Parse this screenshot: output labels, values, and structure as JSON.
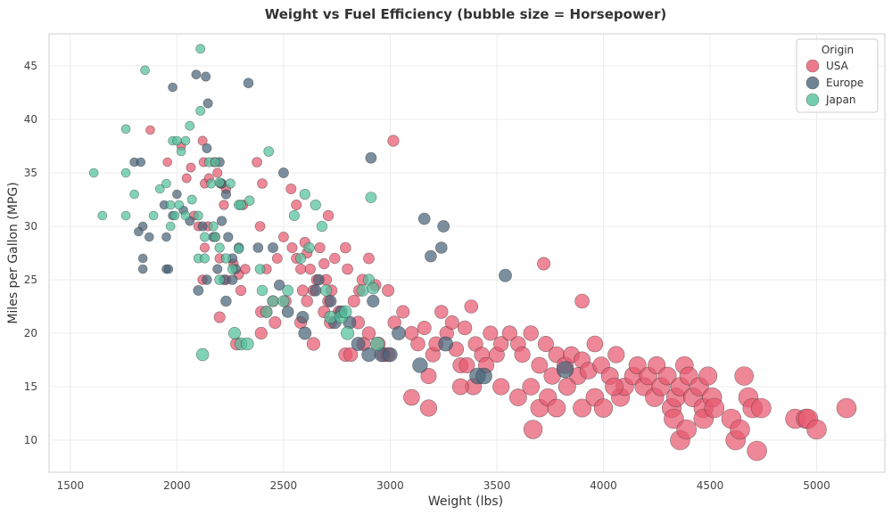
{
  "chart_data": {
    "type": "scatter",
    "title": "Weight vs Fuel Efficiency (bubble size = Horsepower)",
    "xlabel": "Weight (lbs)",
    "ylabel": "Miles per Gallon (MPG)",
    "xlim": [
      1400,
      5320
    ],
    "ylim": [
      7,
      48
    ],
    "xticks": [
      1500,
      2000,
      2500,
      3000,
      3500,
      4000,
      4500,
      5000
    ],
    "yticks": [
      10,
      15,
      20,
      25,
      30,
      35,
      40,
      45
    ],
    "grid": true,
    "legend": {
      "title": "Origin",
      "position": "top-right"
    },
    "size_encoding": "Horsepower",
    "series": [
      {
        "name": "USA",
        "color": "#e8596f",
        "points": [
          [
            1875,
            39
          ],
          [
            1955,
            36
          ],
          [
            2020,
            37.5
          ],
          [
            2045,
            34.5
          ],
          [
            2065,
            35.5
          ],
          [
            2120,
            38
          ],
          [
            2125,
            36
          ],
          [
            2130,
            34
          ],
          [
            2150,
            34.5
          ],
          [
            2175,
            36
          ],
          [
            2190,
            35
          ],
          [
            2205,
            34
          ],
          [
            2220,
            32
          ],
          [
            2230,
            33.5
          ],
          [
            2310,
            32
          ],
          [
            2375,
            36
          ],
          [
            2400,
            34
          ],
          [
            2535,
            33.5
          ],
          [
            2560,
            32
          ],
          [
            2710,
            31
          ],
          [
            3015,
            38
          ],
          [
            2080,
            31
          ],
          [
            2100,
            30
          ],
          [
            2130,
            28
          ],
          [
            2145,
            30
          ],
          [
            2180,
            29
          ],
          [
            2200,
            27
          ],
          [
            2230,
            25
          ],
          [
            2265,
            26.5
          ],
          [
            2290,
            25.5
          ],
          [
            2320,
            26
          ],
          [
            2390,
            30
          ],
          [
            2395,
            22
          ],
          [
            2420,
            26
          ],
          [
            2450,
            23
          ],
          [
            2470,
            27
          ],
          [
            2500,
            29
          ],
          [
            2540,
            28
          ],
          [
            2560,
            27
          ],
          [
            2580,
            26
          ],
          [
            2590,
            24
          ],
          [
            2600,
            28.5
          ],
          [
            2610,
            27.5
          ],
          [
            2625,
            26
          ],
          [
            2640,
            24
          ],
          [
            2655,
            25
          ],
          [
            2670,
            28
          ],
          [
            2690,
            26.5
          ],
          [
            2700,
            25
          ],
          [
            2710,
            23
          ],
          [
            2725,
            24
          ],
          [
            2740,
            27
          ],
          [
            2760,
            22
          ],
          [
            2790,
            28
          ],
          [
            2800,
            26
          ],
          [
            2830,
            23
          ],
          [
            2855,
            24
          ],
          [
            2870,
            25
          ],
          [
            2900,
            27
          ],
          [
            2930,
            24.5
          ],
          [
            2990,
            24
          ],
          [
            2120,
            25
          ],
          [
            2200,
            21.5
          ],
          [
            2280,
            19
          ],
          [
            2300,
            24
          ],
          [
            2395,
            20
          ],
          [
            2420,
            22
          ],
          [
            2460,
            21
          ],
          [
            2510,
            23
          ],
          [
            2580,
            21
          ],
          [
            2610,
            23
          ],
          [
            2640,
            19
          ],
          [
            2690,
            22
          ],
          [
            2720,
            21
          ],
          [
            2790,
            18
          ],
          [
            2815,
            18
          ],
          [
            2850,
            21
          ],
          [
            2875,
            19
          ],
          [
            2900,
            20
          ],
          [
            2945,
            19
          ],
          [
            2970,
            18
          ],
          [
            2990,
            18
          ],
          [
            3020,
            21
          ],
          [
            3060,
            22
          ],
          [
            3100,
            20
          ],
          [
            3130,
            19
          ],
          [
            3160,
            20.5
          ],
          [
            3180,
            16
          ],
          [
            3200,
            18
          ],
          [
            3215,
            19
          ],
          [
            3240,
            22
          ],
          [
            3265,
            20
          ],
          [
            3290,
            21
          ],
          [
            3310,
            18.5
          ],
          [
            3330,
            17
          ],
          [
            3350,
            20.5
          ],
          [
            3380,
            22.5
          ],
          [
            3400,
            19
          ],
          [
            3430,
            18
          ],
          [
            3450,
            17
          ],
          [
            3470,
            20
          ],
          [
            3500,
            18
          ],
          [
            3520,
            19
          ],
          [
            3560,
            20
          ],
          [
            3600,
            19
          ],
          [
            3620,
            18
          ],
          [
            3660,
            20
          ],
          [
            3700,
            17
          ],
          [
            3730,
            19
          ],
          [
            3760,
            16
          ],
          [
            3780,
            18
          ],
          [
            3820,
            17
          ],
          [
            3850,
            18
          ],
          [
            3880,
            16
          ],
          [
            3900,
            17.5
          ],
          [
            3930,
            16.5
          ],
          [
            3960,
            19
          ],
          [
            3990,
            17
          ],
          [
            4030,
            16
          ],
          [
            4060,
            18
          ],
          [
            4080,
            14
          ],
          [
            4100,
            15
          ],
          [
            4140,
            16
          ],
          [
            4160,
            17
          ],
          [
            4190,
            15
          ],
          [
            4210,
            16
          ],
          [
            4240,
            14
          ],
          [
            4250,
            17
          ],
          [
            4270,
            15
          ],
          [
            4300,
            16
          ],
          [
            4320,
            13
          ],
          [
            4340,
            14
          ],
          [
            4360,
            15
          ],
          [
            4380,
            17
          ],
          [
            4400,
            16
          ],
          [
            4420,
            14
          ],
          [
            4450,
            15
          ],
          [
            4470,
            13
          ],
          [
            4490,
            16
          ],
          [
            4510,
            14
          ],
          [
            4330,
            12
          ],
          [
            4360,
            10
          ],
          [
            4390,
            11
          ],
          [
            4470,
            12
          ],
          [
            4520,
            13
          ],
          [
            4600,
            12
          ],
          [
            4620,
            10
          ],
          [
            4640,
            11
          ],
          [
            4660,
            16
          ],
          [
            4680,
            14
          ],
          [
            4700,
            13
          ],
          [
            4720,
            9
          ],
          [
            4740,
            13
          ],
          [
            4900,
            12
          ],
          [
            4950,
            12
          ],
          [
            4960,
            12
          ],
          [
            5000,
            11
          ],
          [
            5140,
            13
          ],
          [
            3670,
            11
          ],
          [
            3100,
            14
          ],
          [
            3180,
            13
          ],
          [
            3390,
            15
          ],
          [
            3520,
            15
          ],
          [
            3600,
            14
          ],
          [
            3660,
            15
          ],
          [
            3700,
            13
          ],
          [
            3740,
            14
          ],
          [
            3780,
            13
          ],
          [
            3830,
            15
          ],
          [
            3900,
            13
          ],
          [
            3960,
            14
          ],
          [
            4000,
            13
          ],
          [
            4050,
            15
          ],
          [
            3720,
            26.5
          ],
          [
            3900,
            23
          ],
          [
            3330,
            15
          ],
          [
            3360,
            17
          ]
        ]
      },
      {
        "name": "Europe",
        "color": "#4a6478",
        "points": [
          [
            1980,
            43
          ],
          [
            2090,
            44.2
          ],
          [
            2135,
            44
          ],
          [
            2335,
            43.4
          ],
          [
            2145,
            41.5
          ],
          [
            2140,
            37.3
          ],
          [
            2200,
            36
          ],
          [
            2210,
            34
          ],
          [
            2230,
            33
          ],
          [
            2500,
            35
          ],
          [
            2910,
            36.4
          ],
          [
            1800,
            36
          ],
          [
            1830,
            36
          ],
          [
            1940,
            32
          ],
          [
            1980,
            31
          ],
          [
            2000,
            33
          ],
          [
            2030,
            31.5
          ],
          [
            2060,
            30.5
          ],
          [
            2120,
            30
          ],
          [
            2170,
            29
          ],
          [
            2210,
            30.5
          ],
          [
            2240,
            29
          ],
          [
            2260,
            27
          ],
          [
            2275,
            26
          ],
          [
            2290,
            28
          ],
          [
            2220,
            25
          ],
          [
            2190,
            26
          ],
          [
            2100,
            24
          ],
          [
            2140,
            25
          ],
          [
            2230,
            23
          ],
          [
            1840,
            30
          ],
          [
            1870,
            29
          ],
          [
            1820,
            29.5
          ],
          [
            1950,
            29
          ],
          [
            1840,
            27
          ],
          [
            1840,
            26
          ],
          [
            1950,
            26
          ],
          [
            1960,
            26
          ],
          [
            2260,
            25
          ],
          [
            2380,
            28
          ],
          [
            2450,
            28
          ],
          [
            2480,
            24.5
          ],
          [
            2520,
            22
          ],
          [
            2590,
            21.5
          ],
          [
            2600,
            20
          ],
          [
            2650,
            24
          ],
          [
            2665,
            25
          ],
          [
            2720,
            23
          ],
          [
            2740,
            21
          ],
          [
            2770,
            22
          ],
          [
            2810,
            21
          ],
          [
            2850,
            19
          ],
          [
            2900,
            18
          ],
          [
            2920,
            23
          ],
          [
            2960,
            18
          ],
          [
            3000,
            18
          ],
          [
            3040,
            20
          ],
          [
            3160,
            30.7
          ],
          [
            3190,
            27.2
          ],
          [
            3240,
            28
          ],
          [
            3250,
            30
          ],
          [
            3140,
            17
          ],
          [
            3260,
            19
          ],
          [
            3410,
            16
          ],
          [
            3440,
            16
          ],
          [
            3540,
            25.4
          ],
          [
            3820,
            16.6
          ]
        ]
      },
      {
        "name": "Japan",
        "color": "#52c19c",
        "points": [
          [
            1850,
            44.6
          ],
          [
            2110,
            46.6
          ],
          [
            2110,
            40.8
          ],
          [
            2060,
            39.4
          ],
          [
            1760,
            39.1
          ],
          [
            2150,
            36
          ],
          [
            2180,
            36
          ],
          [
            2160,
            34
          ],
          [
            2250,
            34
          ],
          [
            2200,
            34.1
          ],
          [
            2430,
            37
          ],
          [
            1610,
            35
          ],
          [
            1650,
            31
          ],
          [
            1760,
            31
          ],
          [
            1800,
            33
          ],
          [
            1760,
            35
          ],
          [
            1920,
            33.5
          ],
          [
            1950,
            34
          ],
          [
            1970,
            32
          ],
          [
            1990,
            31
          ],
          [
            2010,
            32
          ],
          [
            2040,
            31
          ],
          [
            2070,
            32.5
          ],
          [
            2100,
            31
          ],
          [
            2130,
            29
          ],
          [
            2170,
            30
          ],
          [
            2180,
            29
          ],
          [
            2200,
            28
          ],
          [
            2230,
            27
          ],
          [
            2260,
            26
          ],
          [
            2290,
            32
          ],
          [
            2300,
            32
          ],
          [
            2290,
            27.9
          ],
          [
            2340,
            32.4
          ],
          [
            2390,
            26
          ],
          [
            2400,
            24
          ],
          [
            2420,
            22
          ],
          [
            2450,
            23
          ],
          [
            2500,
            23
          ],
          [
            2520,
            24
          ],
          [
            2550,
            31
          ],
          [
            2580,
            27
          ],
          [
            2600,
            33
          ],
          [
            2620,
            28
          ],
          [
            2650,
            32
          ],
          [
            2680,
            30
          ],
          [
            2700,
            24
          ],
          [
            2720,
            21.5
          ],
          [
            2770,
            21.5
          ],
          [
            2790,
            22
          ],
          [
            2800,
            20
          ],
          [
            2870,
            24
          ],
          [
            2900,
            25
          ],
          [
            2910,
            32.7
          ],
          [
            2940,
            19
          ],
          [
            2920,
            24.2
          ],
          [
            1890,
            31
          ],
          [
            1970,
            30
          ],
          [
            1980,
            38
          ],
          [
            2000,
            38
          ],
          [
            2020,
            37
          ],
          [
            2040,
            38
          ],
          [
            2100,
            27
          ],
          [
            2130,
            27
          ],
          [
            2200,
            25
          ],
          [
            2270,
            20
          ],
          [
            2300,
            19
          ],
          [
            2330,
            19
          ],
          [
            2120,
            18
          ]
        ]
      }
    ]
  }
}
